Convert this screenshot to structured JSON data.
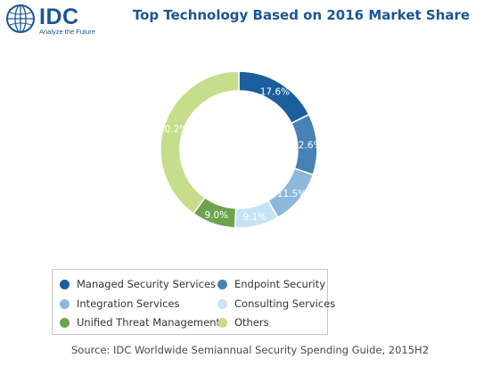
{
  "logo": {
    "text": "IDC",
    "tagline": "Analyze the Future"
  },
  "colors": {
    "managed": "#1b5e9e",
    "endpoint": "#4682b4",
    "integration": "#8db8dc",
    "consulting": "#c6e3f6",
    "utm": "#6da24e",
    "others": "#c6dd8b",
    "title": "#1b5694"
  },
  "chart_data": {
    "type": "pie",
    "style": "donut",
    "title": "Top Technology Based on 2016 Market Share",
    "series": [
      {
        "name": "Managed Security Services",
        "value": 17.6,
        "label": "17.6%",
        "color": "#1b5e9e"
      },
      {
        "name": "Endpoint Security",
        "value": 12.6,
        "label": "12.6%",
        "color": "#4682b4"
      },
      {
        "name": "Integration Services",
        "value": 11.5,
        "label": "11.5%",
        "color": "#8db8dc"
      },
      {
        "name": "Consulting Services",
        "value": 9.1,
        "label": "9.1%",
        "color": "#c6e3f6"
      },
      {
        "name": "Unified Threat Management",
        "value": 9.0,
        "label": "9.0%",
        "color": "#6da24e"
      },
      {
        "name": "Others",
        "value": 40.2,
        "label": "40.2%",
        "color": "#c6dd8b"
      }
    ],
    "legend_position": "bottom-left",
    "source": "Source: IDC Worldwide Semiannual Security Spending Guide, 2015H2"
  }
}
